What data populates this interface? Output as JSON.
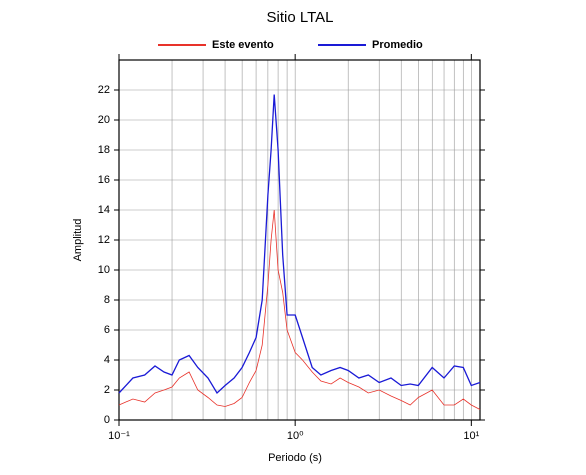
{
  "chart_data": {
    "type": "line",
    "title": "Sitio LTAL",
    "x_label": "Periodo (s)",
    "y_label": "Amplitud",
    "x_scale": "log",
    "grid": true,
    "xlim": [
      0.1,
      11.2
    ],
    "ylim": [
      0,
      24
    ],
    "xticks": [
      {
        "value": 0.1,
        "label": "10⁻¹"
      },
      {
        "value": 1,
        "label": "10⁰"
      },
      {
        "value": 10,
        "label": "10¹"
      }
    ],
    "xminorticks": [
      0.2,
      0.3,
      0.4,
      0.5,
      0.6,
      0.7,
      0.8,
      0.9,
      2,
      3,
      4,
      5,
      6,
      7,
      8,
      9
    ],
    "yticks": [
      0,
      2,
      4,
      6,
      8,
      10,
      12,
      14,
      16,
      18,
      20,
      22
    ],
    "legend": "top",
    "x": [
      0.1,
      0.12,
      0.14,
      0.16,
      0.18,
      0.2,
      0.22,
      0.25,
      0.28,
      0.32,
      0.36,
      0.4,
      0.45,
      0.5,
      0.55,
      0.6,
      0.65,
      0.7,
      0.73,
      0.76,
      0.8,
      0.85,
      0.9,
      1.0,
      1.1,
      1.25,
      1.4,
      1.6,
      1.8,
      2.0,
      2.3,
      2.6,
      3.0,
      3.5,
      4,
      4.5,
      5,
      6,
      7,
      8,
      9,
      10,
      11.2
    ],
    "series": [
      {
        "name": "Este evento",
        "color": "#e8322a",
        "values": [
          1.0,
          1.4,
          1.2,
          1.8,
          2.0,
          2.2,
          2.8,
          3.2,
          2.0,
          1.5,
          1.0,
          0.9,
          1.1,
          1.5,
          2.5,
          3.3,
          5,
          9,
          12,
          14,
          10,
          8.5,
          6,
          4.5,
          4,
          3.2,
          2.6,
          2.4,
          2.8,
          2.5,
          2.2,
          1.8,
          2.0,
          1.6,
          1.3,
          1.0,
          1.5,
          2.0,
          1.0,
          1.0,
          1.4,
          1.0,
          0.7
        ]
      },
      {
        "name": "Promedio",
        "color": "#1a1ad6",
        "values": [
          1.8,
          2.8,
          3.0,
          3.6,
          3.2,
          3.0,
          4.0,
          4.3,
          3.5,
          2.8,
          1.8,
          2.3,
          2.8,
          3.5,
          4.5,
          5.5,
          8,
          15,
          18,
          21.7,
          18,
          11,
          7,
          7,
          5.5,
          3.5,
          3.0,
          3.3,
          3.5,
          3.3,
          2.8,
          3.0,
          2.5,
          2.8,
          2.3,
          2.4,
          2.3,
          3.5,
          2.8,
          3.6,
          3.5,
          2.3,
          2.5
        ]
      }
    ]
  }
}
